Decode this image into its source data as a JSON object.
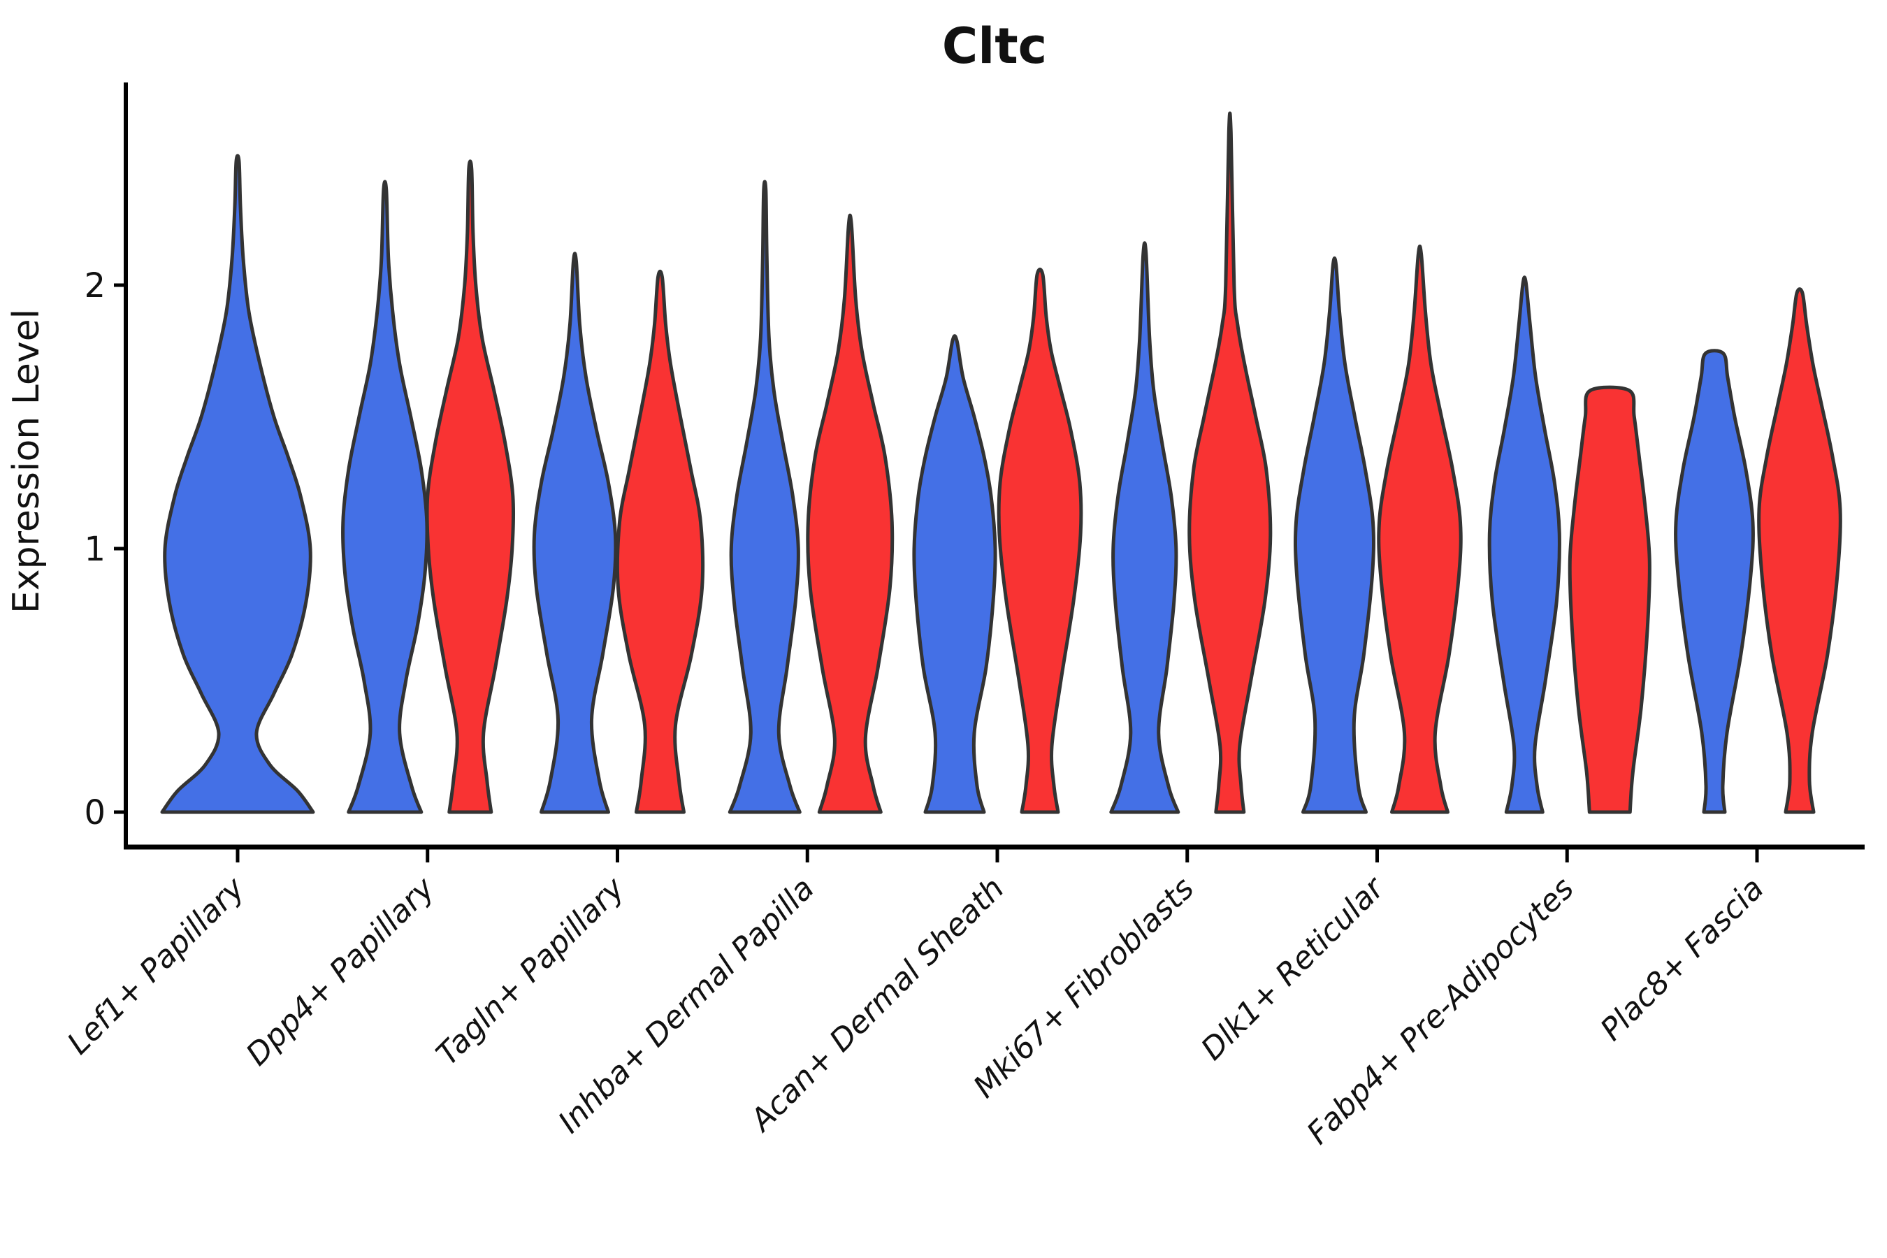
{
  "title": "Cltc",
  "y_axis": {
    "label": "Expression Level",
    "ticks": [
      0,
      1,
      2
    ]
  },
  "colors": {
    "blue": "#4470E6",
    "red": "#F93333",
    "outline": "#333333",
    "axis": "#000000"
  },
  "chart_data": {
    "type": "violin",
    "title": "Cltc",
    "ylabel": "Expression Level",
    "ylim": [
      -0.13,
      2.78
    ],
    "grid": false,
    "legend": "none",
    "split_order": [
      "blue",
      "red"
    ],
    "categories": [
      "Lef1+ Papillary",
      "Dpp4+ Papillary",
      "Tagln+ Papillary",
      "Inhba+ Dermal Papilla",
      "Acan+ Dermal Sheath",
      "Mki67+ Fibroblasts",
      "Dlk1+ Reticular",
      "Fabp4+ Pre-Adipocytes",
      "Plac8+ Fascia"
    ],
    "violins": [
      {
        "category": "Lef1+ Papillary",
        "split": "blue",
        "single": true,
        "max_expression": 2.47,
        "profile": [
          [
            0,
            108
          ],
          [
            0.08,
            86
          ],
          [
            0.18,
            46
          ],
          [
            0.3,
            27
          ],
          [
            0.45,
            52
          ],
          [
            0.6,
            78
          ],
          [
            0.8,
            98
          ],
          [
            1.0,
            104
          ],
          [
            1.2,
            90
          ],
          [
            1.35,
            72
          ],
          [
            1.5,
            52
          ],
          [
            1.7,
            32
          ],
          [
            1.9,
            16
          ],
          [
            2.1,
            8
          ],
          [
            2.3,
            4
          ],
          [
            2.47,
            2
          ]
        ]
      },
      {
        "category": "Dpp4+ Papillary",
        "split": "blue",
        "max_expression": 2.36,
        "profile": [
          [
            0,
            52
          ],
          [
            0.1,
            38
          ],
          [
            0.3,
            21
          ],
          [
            0.5,
            30
          ],
          [
            0.7,
            46
          ],
          [
            0.9,
            57
          ],
          [
            1.1,
            60
          ],
          [
            1.3,
            52
          ],
          [
            1.5,
            37
          ],
          [
            1.7,
            21
          ],
          [
            1.9,
            11
          ],
          [
            2.1,
            5
          ],
          [
            2.36,
            2
          ]
        ]
      },
      {
        "category": "Dpp4+ Papillary",
        "split": "red",
        "max_expression": 2.44,
        "profile": [
          [
            0,
            30
          ],
          [
            0.12,
            24
          ],
          [
            0.3,
            19
          ],
          [
            0.55,
            36
          ],
          [
            0.8,
            52
          ],
          [
            1.0,
            60
          ],
          [
            1.2,
            61
          ],
          [
            1.4,
            50
          ],
          [
            1.6,
            34
          ],
          [
            1.8,
            17
          ],
          [
            2.0,
            8
          ],
          [
            2.2,
            4
          ],
          [
            2.44,
            2
          ]
        ]
      },
      {
        "category": "Tagln+ Papillary",
        "split": "blue",
        "max_expression": 2.09,
        "profile": [
          [
            0,
            48
          ],
          [
            0.12,
            35
          ],
          [
            0.35,
            24
          ],
          [
            0.6,
            40
          ],
          [
            0.85,
            55
          ],
          [
            1.05,
            58
          ],
          [
            1.25,
            48
          ],
          [
            1.45,
            31
          ],
          [
            1.65,
            16
          ],
          [
            1.85,
            7
          ],
          [
            2.09,
            2
          ]
        ]
      },
      {
        "category": "Tagln+ Papillary",
        "split": "red",
        "max_expression": 2.03,
        "profile": [
          [
            0,
            34
          ],
          [
            0.12,
            27
          ],
          [
            0.33,
            22
          ],
          [
            0.6,
            45
          ],
          [
            0.85,
            60
          ],
          [
            1.1,
            58
          ],
          [
            1.3,
            44
          ],
          [
            1.5,
            29
          ],
          [
            1.7,
            15
          ],
          [
            1.85,
            8
          ],
          [
            2.03,
            3
          ]
        ]
      },
      {
        "category": "Inhba+ Dermal Papilla",
        "split": "blue",
        "max_expression": 2.36,
        "profile": [
          [
            0,
            50
          ],
          [
            0.1,
            36
          ],
          [
            0.3,
            20
          ],
          [
            0.55,
            32
          ],
          [
            0.8,
            44
          ],
          [
            1.0,
            48
          ],
          [
            1.2,
            40
          ],
          [
            1.4,
            26
          ],
          [
            1.6,
            13
          ],
          [
            1.8,
            6
          ],
          [
            2.1,
            3
          ],
          [
            2.36,
            1.5
          ]
        ]
      },
      {
        "category": "Inhba+ Dermal Papilla",
        "split": "red",
        "max_expression": 2.23,
        "profile": [
          [
            0,
            44
          ],
          [
            0.1,
            33
          ],
          [
            0.28,
            22
          ],
          [
            0.55,
            40
          ],
          [
            0.85,
            57
          ],
          [
            1.1,
            60
          ],
          [
            1.35,
            50
          ],
          [
            1.55,
            33
          ],
          [
            1.75,
            17
          ],
          [
            1.95,
            8
          ],
          [
            2.23,
            2
          ]
        ]
      },
      {
        "category": "Acan+ Dermal Sheath",
        "split": "blue",
        "max_expression": 1.79,
        "profile": [
          [
            0,
            42
          ],
          [
            0.1,
            32
          ],
          [
            0.3,
            28
          ],
          [
            0.55,
            45
          ],
          [
            0.8,
            55
          ],
          [
            1.0,
            58
          ],
          [
            1.2,
            52
          ],
          [
            1.35,
            42
          ],
          [
            1.5,
            28
          ],
          [
            1.65,
            12
          ],
          [
            1.79,
            3
          ]
        ]
      },
      {
        "category": "Acan+ Dermal Sheath",
        "split": "red",
        "max_expression": 2.04,
        "profile": [
          [
            0,
            26
          ],
          [
            0.1,
            20
          ],
          [
            0.25,
            17
          ],
          [
            0.5,
            30
          ],
          [
            0.8,
            48
          ],
          [
            1.05,
            58
          ],
          [
            1.25,
            57
          ],
          [
            1.45,
            44
          ],
          [
            1.6,
            30
          ],
          [
            1.75,
            16
          ],
          [
            1.88,
            9
          ],
          [
            2.04,
            4
          ]
        ]
      },
      {
        "category": "Mki67+ Fibroblasts",
        "split": "blue",
        "max_expression": 2.12,
        "profile": [
          [
            0,
            48
          ],
          [
            0.1,
            34
          ],
          [
            0.3,
            20
          ],
          [
            0.55,
            32
          ],
          [
            0.8,
            42
          ],
          [
            1.0,
            45
          ],
          [
            1.2,
            38
          ],
          [
            1.4,
            25
          ],
          [
            1.6,
            13
          ],
          [
            1.8,
            7
          ],
          [
            2.12,
            2
          ]
        ]
      },
      {
        "category": "Mki67+ Fibroblasts",
        "split": "red",
        "max_expression": 2.58,
        "profile": [
          [
            0,
            20
          ],
          [
            0.1,
            16
          ],
          [
            0.25,
            14
          ],
          [
            0.5,
            30
          ],
          [
            0.8,
            50
          ],
          [
            1.05,
            58
          ],
          [
            1.3,
            52
          ],
          [
            1.5,
            37
          ],
          [
            1.7,
            21
          ],
          [
            1.85,
            11
          ],
          [
            2.0,
            6
          ],
          [
            2.58,
            1.5
          ]
        ]
      },
      {
        "category": "Dlk1+ Reticular",
        "split": "blue",
        "max_expression": 2.08,
        "profile": [
          [
            0,
            45
          ],
          [
            0.1,
            34
          ],
          [
            0.35,
            28
          ],
          [
            0.6,
            42
          ],
          [
            0.9,
            54
          ],
          [
            1.1,
            55
          ],
          [
            1.3,
            44
          ],
          [
            1.5,
            29
          ],
          [
            1.7,
            15
          ],
          [
            1.9,
            7
          ],
          [
            2.08,
            2
          ]
        ]
      },
      {
        "category": "Dlk1+ Reticular",
        "split": "red",
        "max_expression": 2.12,
        "profile": [
          [
            0,
            40
          ],
          [
            0.1,
            30
          ],
          [
            0.3,
            22
          ],
          [
            0.6,
            42
          ],
          [
            0.9,
            56
          ],
          [
            1.1,
            58
          ],
          [
            1.3,
            47
          ],
          [
            1.5,
            31
          ],
          [
            1.7,
            16
          ],
          [
            1.9,
            8
          ],
          [
            2.12,
            2
          ]
        ]
      },
      {
        "category": "Fabp4+ Pre-Adipocytes",
        "split": "blue",
        "max_expression": 2.01,
        "profile": [
          [
            0,
            26
          ],
          [
            0.1,
            18
          ],
          [
            0.25,
            15
          ],
          [
            0.5,
            30
          ],
          [
            0.8,
            46
          ],
          [
            1.05,
            50
          ],
          [
            1.25,
            43
          ],
          [
            1.45,
            29
          ],
          [
            1.65,
            16
          ],
          [
            1.85,
            8
          ],
          [
            2.01,
            2
          ]
        ]
      },
      {
        "category": "Fabp4+ Pre-Adipocytes",
        "split": "red",
        "max_expression": 1.6,
        "flat_top": true,
        "profile": [
          [
            0,
            29
          ],
          [
            0.15,
            33
          ],
          [
            0.4,
            45
          ],
          [
            0.7,
            54
          ],
          [
            0.95,
            57
          ],
          [
            1.15,
            51
          ],
          [
            1.35,
            42
          ],
          [
            1.5,
            35
          ],
          [
            1.6,
            28
          ]
        ]
      },
      {
        "category": "Plac8+ Fascia",
        "split": "blue",
        "max_expression": 1.74,
        "flat_top": true,
        "profile": [
          [
            0,
            15
          ],
          [
            0.1,
            12
          ],
          [
            0.3,
            18
          ],
          [
            0.6,
            38
          ],
          [
            0.9,
            52
          ],
          [
            1.1,
            55
          ],
          [
            1.3,
            45
          ],
          [
            1.5,
            29
          ],
          [
            1.65,
            19
          ],
          [
            1.74,
            13
          ]
        ]
      },
      {
        "category": "Plac8+ Fascia",
        "split": "red",
        "max_expression": 1.97,
        "profile": [
          [
            0,
            20
          ],
          [
            0.12,
            14
          ],
          [
            0.3,
            18
          ],
          [
            0.6,
            40
          ],
          [
            0.9,
            54
          ],
          [
            1.15,
            58
          ],
          [
            1.35,
            47
          ],
          [
            1.55,
            31
          ],
          [
            1.7,
            19
          ],
          [
            1.85,
            10
          ],
          [
            1.97,
            4
          ]
        ]
      }
    ]
  }
}
